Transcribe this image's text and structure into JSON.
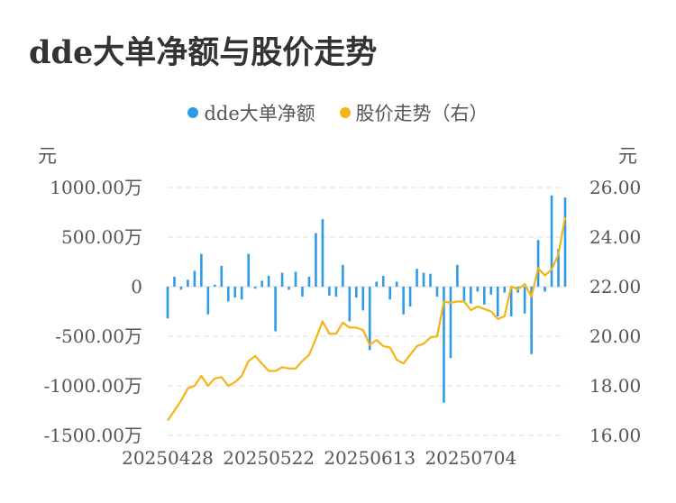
{
  "title": "dde大单净额与股价走势",
  "legend": {
    "series_1": "dde大单净额",
    "series_2": "股价走势（右）"
  },
  "units": {
    "left": "元",
    "right": "元"
  },
  "colors": {
    "bar": "#2e9be6",
    "line": "#f5b316",
    "grid": "#e3e3e3",
    "axis_text": "#555555"
  },
  "chart_data": {
    "type": "bar",
    "title": "dde大单净额与股价走势",
    "x_tick_labels": [
      "20250428",
      "20250522",
      "20250613",
      "20250704"
    ],
    "x_tick_indices": [
      0,
      15,
      30,
      45
    ],
    "y_left": {
      "label": "元",
      "ylim": [
        -1500,
        1000
      ],
      "ticks": [
        1000,
        500,
        0,
        -500,
        -1000,
        -1500
      ],
      "tick_labels": [
        "1000.00万",
        "500.00万",
        "0",
        "-500.00万",
        "-1000.00万",
        "-1500.00万"
      ]
    },
    "y_right": {
      "label": "元",
      "ylim": [
        16,
        26
      ],
      "ticks": [
        26,
        24,
        22,
        20,
        18,
        16
      ],
      "tick_labels": [
        "26.00",
        "24.00",
        "22.00",
        "20.00",
        "18.00",
        "16.00"
      ]
    },
    "grid": true,
    "legend_position": "top-center",
    "series": [
      {
        "name": "dde大单净额",
        "type": "bar",
        "unit": "万元",
        "values": [
          -320,
          100,
          -30,
          70,
          160,
          330,
          -280,
          20,
          210,
          -150,
          -110,
          -130,
          330,
          -20,
          60,
          110,
          -450,
          140,
          -30,
          150,
          -100,
          100,
          540,
          680,
          -90,
          -100,
          220,
          -350,
          -110,
          -240,
          -640,
          50,
          110,
          -130,
          50,
          -280,
          -200,
          180,
          140,
          130,
          -100,
          -1170,
          -720,
          220,
          -150,
          -170,
          -50,
          -180,
          -80,
          -300,
          -60,
          -300,
          -60,
          -270,
          -680,
          470,
          -50,
          920,
          380,
          900
        ]
      },
      {
        "name": "股价走势（右）",
        "type": "line",
        "unit": "元",
        "values": [
          16.6,
          17.0,
          17.4,
          17.9,
          18.0,
          18.4,
          18.0,
          18.3,
          18.35,
          18.0,
          18.15,
          18.4,
          19.0,
          19.2,
          18.9,
          18.6,
          18.6,
          18.75,
          18.7,
          18.7,
          19.0,
          19.25,
          19.9,
          20.6,
          20.1,
          20.1,
          20.55,
          20.35,
          20.35,
          20.25,
          19.65,
          19.85,
          19.6,
          19.55,
          19.05,
          18.9,
          19.25,
          19.6,
          19.7,
          19.95,
          20.0,
          21.4,
          21.35,
          21.4,
          21.4,
          21.05,
          21.2,
          21.1,
          21.0,
          20.7,
          20.8,
          22.0,
          21.9,
          22.1,
          21.6,
          22.75,
          22.45,
          22.7,
          23.3,
          24.8
        ]
      }
    ]
  }
}
